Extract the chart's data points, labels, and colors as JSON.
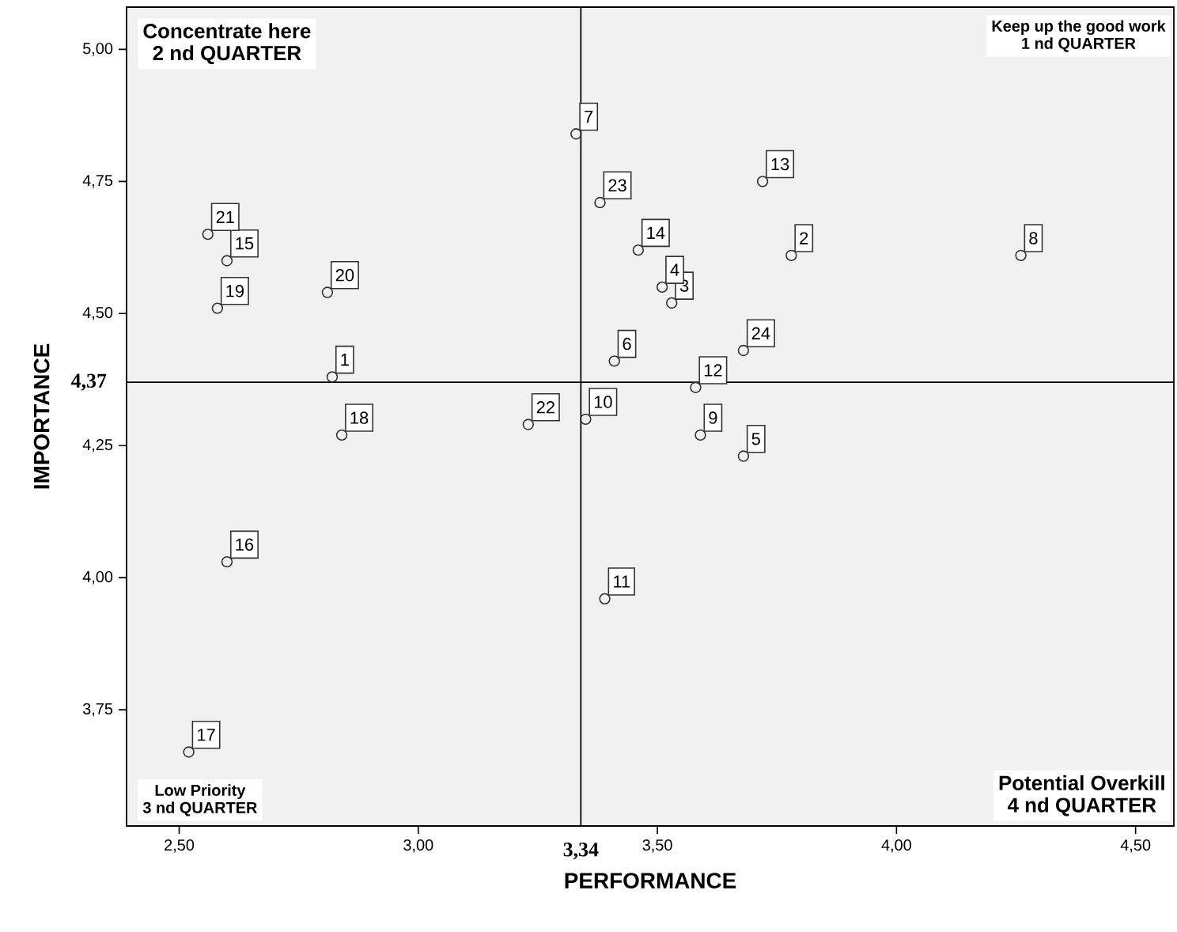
{
  "chart_data": {
    "type": "scatter",
    "xlabel": "PERFORMANCE",
    "ylabel": "IMPORTANCE",
    "x": [
      2.82,
      3.78,
      3.53,
      3.51,
      3.68,
      3.41,
      3.33,
      4.26,
      3.59,
      3.35,
      3.39,
      3.58,
      3.72,
      3.46,
      2.6,
      2.6,
      2.52,
      2.84,
      2.58,
      2.81,
      2.56,
      3.23,
      3.38,
      3.68
    ],
    "values": [
      4.38,
      4.61,
      4.52,
      4.55,
      4.23,
      4.41,
      4.84,
      4.61,
      4.27,
      4.3,
      3.96,
      4.36,
      4.75,
      4.62,
      4.6,
      4.03,
      3.67,
      4.27,
      4.51,
      4.54,
      4.65,
      4.29,
      4.71,
      4.43
    ],
    "color": "#333333",
    "marker": "circle",
    "xlim": [
      2.39,
      4.58
    ],
    "ylim": [
      3.53,
      5.08
    ],
    "xticks": [
      {
        "value": 2.5,
        "label": "2,50"
      },
      {
        "value": 3.0,
        "label": "3,00"
      },
      {
        "value": 3.5,
        "label": "3,50"
      },
      {
        "value": 4.0,
        "label": "4,00"
      },
      {
        "value": 4.5,
        "label": "4,50"
      }
    ],
    "yticks": [
      {
        "value": 3.75,
        "label": "3,75"
      },
      {
        "value": 4.0,
        "label": "4,00"
      },
      {
        "value": 4.25,
        "label": "4,25"
      },
      {
        "value": 4.5,
        "label": "4,50"
      },
      {
        "value": 4.75,
        "label": "4,75"
      },
      {
        "value": 5.0,
        "label": "5,00"
      }
    ],
    "ref_lines": [
      {
        "axis": "x",
        "value": 3.34,
        "label": "3,34"
      },
      {
        "axis": "y",
        "value": 4.37,
        "label": "4,37"
      }
    ],
    "grid": false,
    "annotations": [
      {
        "text": "1",
        "x": 2.82,
        "y": 4.38
      },
      {
        "text": "2",
        "x": 3.78,
        "y": 4.61
      },
      {
        "text": "3",
        "x": 3.53,
        "y": 4.52
      },
      {
        "text": "4",
        "x": 3.51,
        "y": 4.55
      },
      {
        "text": "5",
        "x": 3.68,
        "y": 4.23
      },
      {
        "text": "6",
        "x": 3.41,
        "y": 4.41
      },
      {
        "text": "7",
        "x": 3.33,
        "y": 4.84
      },
      {
        "text": "8",
        "x": 4.26,
        "y": 4.61
      },
      {
        "text": "9",
        "x": 3.59,
        "y": 4.27
      },
      {
        "text": "10",
        "x": 3.35,
        "y": 4.3
      },
      {
        "text": "11",
        "x": 3.39,
        "y": 3.96
      },
      {
        "text": "12",
        "x": 3.58,
        "y": 4.36
      },
      {
        "text": "13",
        "x": 3.72,
        "y": 4.75
      },
      {
        "text": "14",
        "x": 3.46,
        "y": 4.62
      },
      {
        "text": "15",
        "x": 2.6,
        "y": 4.6
      },
      {
        "text": "16",
        "x": 2.6,
        "y": 4.03
      },
      {
        "text": "17",
        "x": 2.52,
        "y": 3.67
      },
      {
        "text": "18",
        "x": 2.84,
        "y": 4.27
      },
      {
        "text": "19",
        "x": 2.58,
        "y": 4.51
      },
      {
        "text": "20",
        "x": 2.81,
        "y": 4.54
      },
      {
        "text": "21",
        "x": 2.56,
        "y": 4.65
      },
      {
        "text": "22",
        "x": 3.23,
        "y": 4.29
      },
      {
        "text": "23",
        "x": 3.38,
        "y": 4.71
      },
      {
        "text": "24",
        "x": 3.68,
        "y": 4.43
      },
      "Concentrate here",
      "2 nd QUARTER",
      "Keep up the good work",
      "1 nd QUARTER",
      "Low Priority",
      "3 nd QUARTER",
      "Potential Overkill",
      "4 nd QUARTER"
    ]
  }
}
